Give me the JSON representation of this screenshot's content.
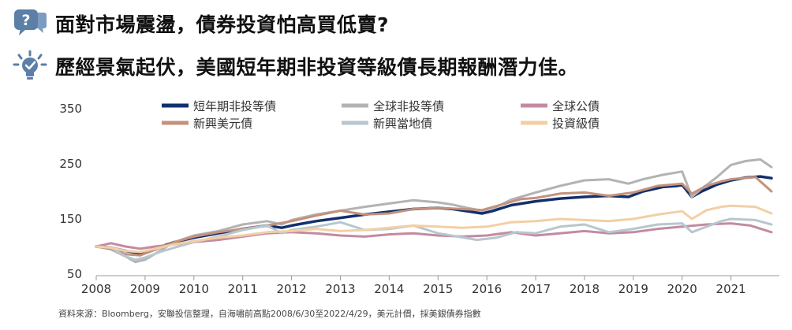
{
  "headlines": [
    {
      "text": "面對市場震盪，債券投資怕高買低賣?",
      "icon": "question-bubble-icon"
    },
    {
      "text": "歷經景氣起伏，美國短年期非投資等級債長期報酬潛力佳。",
      "icon": "lightbulb-check-icon"
    }
  ],
  "colors": {
    "icon": "#5b7fa6"
  },
  "chart_data": {
    "type": "line",
    "ylim": [
      50,
      350
    ],
    "yticks": [
      50,
      150,
      250,
      350
    ],
    "x_range": [
      2008.0,
      2021.83
    ],
    "xticks": [
      "2008",
      "2009",
      "2010",
      "2011",
      "2012",
      "2013",
      "2014",
      "2015",
      "2016",
      "2017",
      "2018",
      "2019",
      "2020",
      "2021"
    ],
    "grid": false,
    "legend_position": "top",
    "series": [
      {
        "name": "短年期非投等債",
        "color": "#12306e",
        "width": 3.5,
        "points": [
          [
            2008.0,
            100
          ],
          [
            2008.3,
            98
          ],
          [
            2008.6,
            92
          ],
          [
            2008.9,
            88
          ],
          [
            2009.2,
            96
          ],
          [
            2009.6,
            108
          ],
          [
            2010.0,
            116
          ],
          [
            2010.5,
            124
          ],
          [
            2011.0,
            132
          ],
          [
            2011.5,
            138
          ],
          [
            2011.8,
            134
          ],
          [
            2012.0,
            138
          ],
          [
            2012.5,
            146
          ],
          [
            2013.0,
            152
          ],
          [
            2013.5,
            158
          ],
          [
            2014.0,
            163
          ],
          [
            2014.5,
            168
          ],
          [
            2015.0,
            170
          ],
          [
            2015.3,
            168
          ],
          [
            2015.6,
            164
          ],
          [
            2015.9,
            160
          ],
          [
            2016.1,
            164
          ],
          [
            2016.5,
            175
          ],
          [
            2017.0,
            182
          ],
          [
            2017.5,
            187
          ],
          [
            2018.0,
            190
          ],
          [
            2018.5,
            192
          ],
          [
            2018.9,
            190
          ],
          [
            2019.2,
            200
          ],
          [
            2019.6,
            208
          ],
          [
            2019.9,
            210
          ],
          [
            2020.0,
            212
          ],
          [
            2020.2,
            190
          ],
          [
            2020.4,
            200
          ],
          [
            2020.7,
            212
          ],
          [
            2021.0,
            220
          ],
          [
            2021.3,
            225
          ],
          [
            2021.6,
            227
          ],
          [
            2021.83,
            224
          ]
        ]
      },
      {
        "name": "全球非投等債",
        "color": "#b3b3b3",
        "width": 3,
        "points": [
          [
            2008.0,
            100
          ],
          [
            2008.3,
            95
          ],
          [
            2008.6,
            82
          ],
          [
            2008.8,
            72
          ],
          [
            2009.0,
            76
          ],
          [
            2009.3,
            92
          ],
          [
            2009.6,
            108
          ],
          [
            2010.0,
            120
          ],
          [
            2010.5,
            128
          ],
          [
            2011.0,
            140
          ],
          [
            2011.5,
            146
          ],
          [
            2011.8,
            140
          ],
          [
            2012.0,
            148
          ],
          [
            2012.5,
            158
          ],
          [
            2013.0,
            165
          ],
          [
            2013.5,
            172
          ],
          [
            2014.0,
            178
          ],
          [
            2014.5,
            184
          ],
          [
            2015.0,
            180
          ],
          [
            2015.3,
            176
          ],
          [
            2015.6,
            170
          ],
          [
            2015.9,
            165
          ],
          [
            2016.2,
            172
          ],
          [
            2016.5,
            185
          ],
          [
            2017.0,
            198
          ],
          [
            2017.5,
            210
          ],
          [
            2018.0,
            220
          ],
          [
            2018.5,
            222
          ],
          [
            2018.9,
            214
          ],
          [
            2019.2,
            222
          ],
          [
            2019.6,
            230
          ],
          [
            2020.0,
            236
          ],
          [
            2020.2,
            190
          ],
          [
            2020.4,
            205
          ],
          [
            2020.7,
            225
          ],
          [
            2021.0,
            248
          ],
          [
            2021.3,
            255
          ],
          [
            2021.6,
            258
          ],
          [
            2021.83,
            244
          ]
        ]
      },
      {
        "name": "全球公債",
        "color": "#c48aa2",
        "width": 3,
        "points": [
          [
            2008.0,
            100
          ],
          [
            2008.3,
            106
          ],
          [
            2008.6,
            100
          ],
          [
            2008.9,
            96
          ],
          [
            2009.2,
            100
          ],
          [
            2009.6,
            104
          ],
          [
            2010.0,
            108
          ],
          [
            2010.5,
            112
          ],
          [
            2011.0,
            118
          ],
          [
            2011.5,
            124
          ],
          [
            2012.0,
            126
          ],
          [
            2012.5,
            124
          ],
          [
            2013.0,
            120
          ],
          [
            2013.5,
            118
          ],
          [
            2014.0,
            122
          ],
          [
            2014.5,
            124
          ],
          [
            2015.0,
            120
          ],
          [
            2015.5,
            118
          ],
          [
            2016.0,
            120
          ],
          [
            2016.5,
            126
          ],
          [
            2017.0,
            120
          ],
          [
            2017.5,
            124
          ],
          [
            2018.0,
            128
          ],
          [
            2018.5,
            124
          ],
          [
            2019.0,
            126
          ],
          [
            2019.5,
            132
          ],
          [
            2020.0,
            136
          ],
          [
            2020.5,
            140
          ],
          [
            2021.0,
            142
          ],
          [
            2021.4,
            138
          ],
          [
            2021.83,
            126
          ]
        ]
      },
      {
        "name": "新興美元債",
        "color": "#c4917d",
        "width": 3,
        "points": [
          [
            2008.0,
            100
          ],
          [
            2008.3,
            96
          ],
          [
            2008.6,
            86
          ],
          [
            2008.9,
            84
          ],
          [
            2009.2,
            94
          ],
          [
            2009.6,
            108
          ],
          [
            2010.0,
            118
          ],
          [
            2010.5,
            126
          ],
          [
            2011.0,
            132
          ],
          [
            2011.5,
            138
          ],
          [
            2012.0,
            146
          ],
          [
            2012.5,
            156
          ],
          [
            2013.0,
            165
          ],
          [
            2013.5,
            158
          ],
          [
            2014.0,
            160
          ],
          [
            2014.5,
            168
          ],
          [
            2015.0,
            170
          ],
          [
            2015.5,
            168
          ],
          [
            2015.9,
            166
          ],
          [
            2016.3,
            176
          ],
          [
            2016.7,
            186
          ],
          [
            2017.0,
            188
          ],
          [
            2017.5,
            196
          ],
          [
            2018.0,
            198
          ],
          [
            2018.5,
            192
          ],
          [
            2019.0,
            198
          ],
          [
            2019.5,
            210
          ],
          [
            2020.0,
            214
          ],
          [
            2020.2,
            196
          ],
          [
            2020.5,
            210
          ],
          [
            2020.8,
            218
          ],
          [
            2021.0,
            222
          ],
          [
            2021.5,
            226
          ],
          [
            2021.83,
            200
          ]
        ]
      },
      {
        "name": "新興當地債",
        "color": "#b7c7cf",
        "width": 3,
        "points": [
          [
            2008.0,
            100
          ],
          [
            2008.3,
            98
          ],
          [
            2008.6,
            82
          ],
          [
            2008.8,
            76
          ],
          [
            2009.0,
            80
          ],
          [
            2009.3,
            90
          ],
          [
            2009.6,
            98
          ],
          [
            2010.0,
            108
          ],
          [
            2010.5,
            118
          ],
          [
            2011.0,
            130
          ],
          [
            2011.5,
            138
          ],
          [
            2011.8,
            124
          ],
          [
            2012.0,
            130
          ],
          [
            2012.5,
            136
          ],
          [
            2013.0,
            144
          ],
          [
            2013.5,
            130
          ],
          [
            2014.0,
            132
          ],
          [
            2014.5,
            138
          ],
          [
            2015.0,
            124
          ],
          [
            2015.4,
            118
          ],
          [
            2015.8,
            112
          ],
          [
            2016.2,
            116
          ],
          [
            2016.6,
            126
          ],
          [
            2017.0,
            124
          ],
          [
            2017.5,
            136
          ],
          [
            2018.0,
            140
          ],
          [
            2018.5,
            126
          ],
          [
            2019.0,
            132
          ],
          [
            2019.5,
            140
          ],
          [
            2020.0,
            142
          ],
          [
            2020.2,
            126
          ],
          [
            2020.5,
            136
          ],
          [
            2020.8,
            146
          ],
          [
            2021.0,
            150
          ],
          [
            2021.5,
            148
          ],
          [
            2021.83,
            140
          ]
        ]
      },
      {
        "name": "投資級債",
        "color": "#f3cfa5",
        "width": 3,
        "points": [
          [
            2008.0,
            100
          ],
          [
            2008.3,
            98
          ],
          [
            2008.6,
            92
          ],
          [
            2008.9,
            90
          ],
          [
            2009.2,
            96
          ],
          [
            2009.6,
            104
          ],
          [
            2010.0,
            110
          ],
          [
            2010.5,
            116
          ],
          [
            2011.0,
            120
          ],
          [
            2011.5,
            126
          ],
          [
            2012.0,
            128
          ],
          [
            2012.5,
            132
          ],
          [
            2013.0,
            128
          ],
          [
            2013.5,
            130
          ],
          [
            2014.0,
            134
          ],
          [
            2014.5,
            138
          ],
          [
            2015.0,
            136
          ],
          [
            2015.5,
            134
          ],
          [
            2016.0,
            136
          ],
          [
            2016.5,
            144
          ],
          [
            2017.0,
            146
          ],
          [
            2017.5,
            150
          ],
          [
            2018.0,
            148
          ],
          [
            2018.5,
            146
          ],
          [
            2019.0,
            150
          ],
          [
            2019.5,
            158
          ],
          [
            2020.0,
            164
          ],
          [
            2020.2,
            150
          ],
          [
            2020.5,
            166
          ],
          [
            2020.8,
            172
          ],
          [
            2021.0,
            174
          ],
          [
            2021.5,
            172
          ],
          [
            2021.83,
            160
          ]
        ]
      }
    ]
  },
  "source": "資料來源：Bloomberg，安聯投信整理，自海嘯前高點2008/6/30至2022/4/29，美元計價，採美銀債券指數"
}
